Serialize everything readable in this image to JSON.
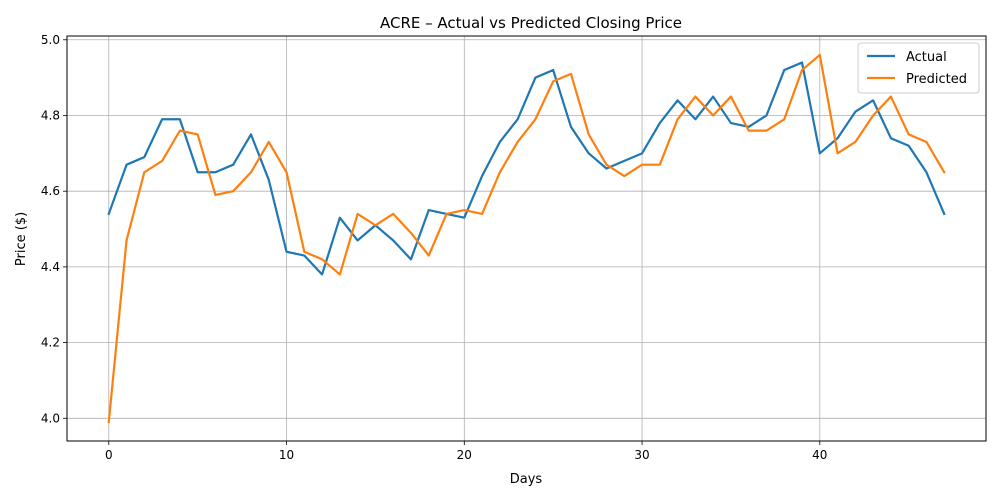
{
  "chart_data": {
    "type": "line",
    "title": "ACRE – Actual vs Predicted Closing Price",
    "xlabel": "Days",
    "ylabel": "Price ($)",
    "xlim": [
      -2.35,
      49.35
    ],
    "ylim": [
      3.94,
      5.01
    ],
    "xticks": [
      0,
      10,
      20,
      30,
      40
    ],
    "yticks": [
      4.0,
      4.2,
      4.4,
      4.6,
      4.8,
      5.0
    ],
    "grid": true,
    "legend_position": "top-right",
    "x": [
      0,
      1,
      2,
      3,
      4,
      5,
      6,
      7,
      8,
      9,
      10,
      11,
      12,
      13,
      14,
      15,
      16,
      17,
      18,
      19,
      20,
      21,
      22,
      23,
      24,
      25,
      26,
      27,
      28,
      29,
      30,
      31,
      32,
      33,
      34,
      35,
      36,
      37,
      38,
      39,
      40,
      41,
      42,
      43,
      44,
      45,
      46,
      47
    ],
    "series": [
      {
        "name": "Actual",
        "color": "#1f77b4",
        "values": [
          4.54,
          4.67,
          4.69,
          4.79,
          4.79,
          4.65,
          4.65,
          4.67,
          4.75,
          4.63,
          4.44,
          4.43,
          4.38,
          4.53,
          4.47,
          4.51,
          4.47,
          4.42,
          4.55,
          4.54,
          4.53,
          4.64,
          4.73,
          4.79,
          4.9,
          4.92,
          4.77,
          4.7,
          4.66,
          4.68,
          4.7,
          4.78,
          4.84,
          4.79,
          4.85,
          4.78,
          4.77,
          4.8,
          4.92,
          4.94,
          4.7,
          4.74,
          4.81,
          4.84,
          4.74,
          4.72,
          4.65,
          4.54
        ]
      },
      {
        "name": "Predicted",
        "color": "#ff7f0e",
        "values": [
          3.99,
          4.47,
          4.65,
          4.68,
          4.76,
          4.75,
          4.59,
          4.6,
          4.65,
          4.73,
          4.65,
          4.44,
          4.42,
          4.38,
          4.54,
          4.51,
          4.54,
          4.49,
          4.43,
          4.54,
          4.55,
          4.54,
          4.65,
          4.73,
          4.79,
          4.89,
          4.91,
          4.75,
          4.67,
          4.64,
          4.67,
          4.67,
          4.79,
          4.85,
          4.8,
          4.85,
          4.76,
          4.76,
          4.79,
          4.92,
          4.96,
          4.7,
          4.73,
          4.8,
          4.85,
          4.75,
          4.73,
          4.65
        ]
      }
    ]
  }
}
